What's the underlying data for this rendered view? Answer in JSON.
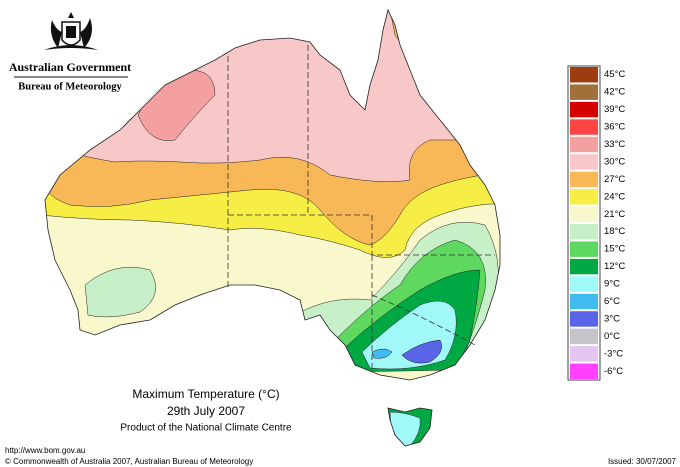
{
  "header": {
    "agency": "Australian Government",
    "bureau": "Bureau of Meteorology"
  },
  "legend": [
    {
      "label": "45°C",
      "color": "#9c3c10"
    },
    {
      "label": "42°C",
      "color": "#a0703c"
    },
    {
      "label": "39°C",
      "color": "#d40000"
    },
    {
      "label": "36°C",
      "color": "#ff4444"
    },
    {
      "label": "33°C",
      "color": "#f4a0a0"
    },
    {
      "label": "30°C",
      "color": "#f8c8c8"
    },
    {
      "label": "27°C",
      "color": "#f8b858"
    },
    {
      "label": "24°C",
      "color": "#f6ee44"
    },
    {
      "label": "21°C",
      "color": "#f8f8cc"
    },
    {
      "label": "18°C",
      "color": "#c8f0c8"
    },
    {
      "label": "15°C",
      "color": "#5ed85e"
    },
    {
      "label": "12°C",
      "color": "#00a844"
    },
    {
      "label": "9°C",
      "color": "#a0f8f8"
    },
    {
      "label": "6°C",
      "color": "#40bcf0"
    },
    {
      "label": "3°C",
      "color": "#5a64e8"
    },
    {
      "label": "0°C",
      "color": "#c4c4cc"
    },
    {
      "label": "-3°C",
      "color": "#e4c4f0"
    },
    {
      "label": "-6°C",
      "color": "#ff40ff"
    }
  ],
  "caption": {
    "title": "Maximum Temperature (°C)",
    "date": "29th July 2007",
    "product": "Product of the National Climate Centre"
  },
  "footer": {
    "url": "http://www.bom.gov.au",
    "copyright": "© Commonwealth of Australia 2007, Australian Bureau of Meteorology",
    "issued": "Issued: 30/07/2007"
  }
}
